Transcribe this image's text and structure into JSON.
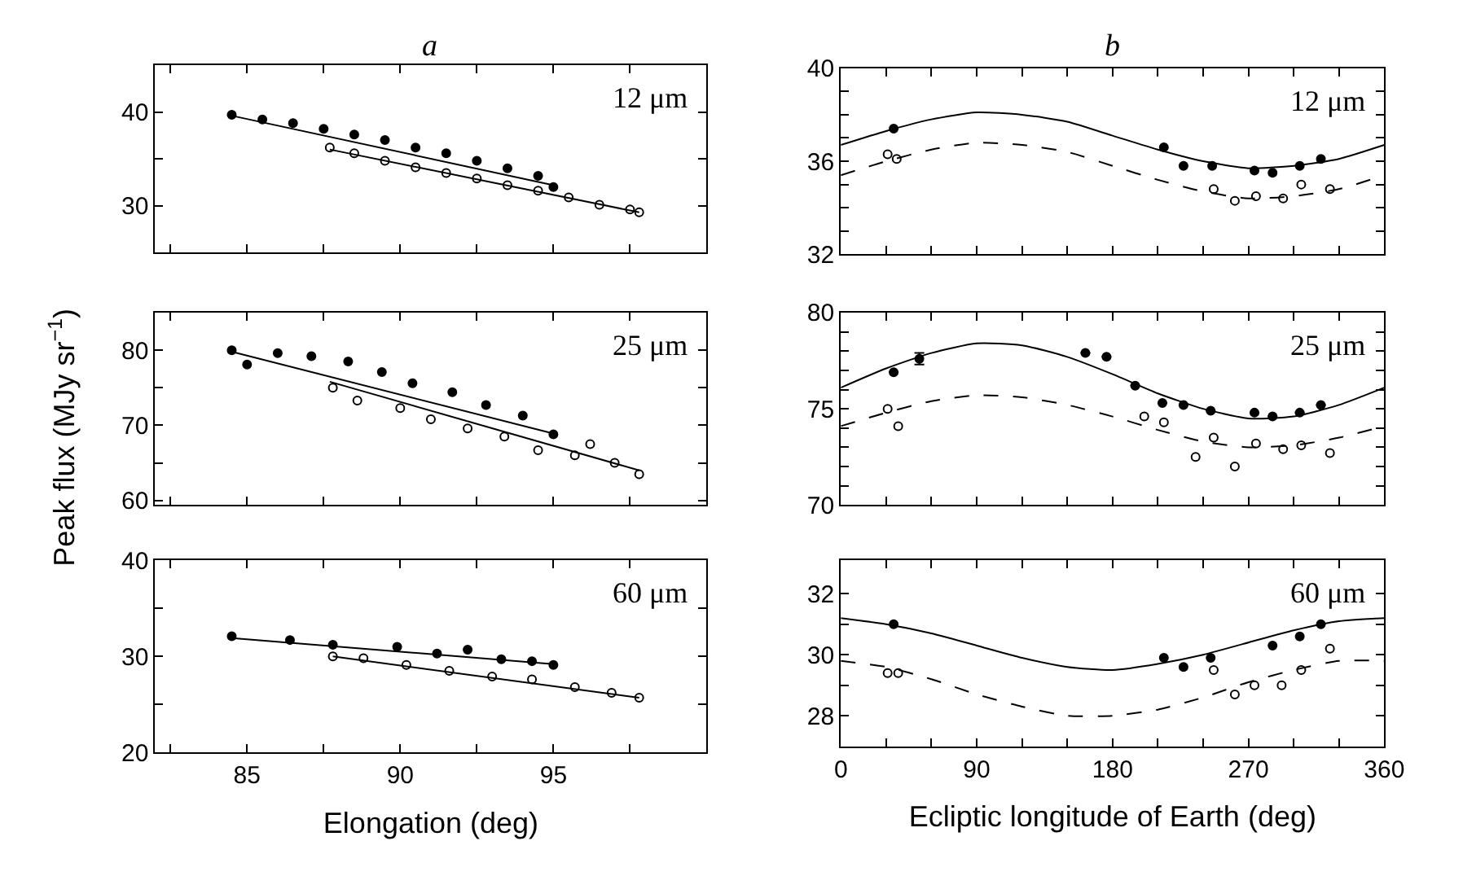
{
  "chart_data": [
    {
      "type": "scatter",
      "title": "a",
      "marker": "circle",
      "tick_labels": "y",
      "annotations": [
        "12 μm"
      ],
      "xlim": [
        82,
        100
      ],
      "xticks": [
        {
          "value": 82.5,
          "label": null
        },
        85,
        {
          "value": 87.5,
          "label": null
        },
        90,
        {
          "value": 92.5,
          "label": null
        },
        95,
        {
          "value": 97.5,
          "label": null
        }
      ],
      "ylim": [
        25,
        45
      ],
      "yticks": [
        30,
        {
          "value": 35,
          "label": null
        },
        40
      ],
      "series": [
        {
          "color": "#000000",
          "x": [
            84.5,
            85.5,
            86.5,
            87.5,
            88.5,
            89.5,
            90.5,
            91.5,
            92.5,
            93.5,
            94.5,
            95.0
          ],
          "values": [
            39.7,
            39.2,
            38.8,
            38.2,
            37.6,
            37.0,
            36.2,
            35.6,
            34.8,
            34.0,
            33.2,
            32.0
          ]
        },
        {
          "color": "#ffffff",
          "x": [
            87.7,
            88.5,
            89.5,
            90.5,
            91.5,
            92.5,
            93.5,
            94.5,
            95.5,
            96.5,
            97.5,
            97.8
          ],
          "values": [
            36.2,
            35.6,
            34.8,
            34.1,
            33.5,
            32.9,
            32.2,
            31.6,
            30.9,
            30.1,
            29.6,
            29.3
          ]
        },
        {
          "type": "line",
          "marker": "none",
          "line_style": "solid",
          "color": "#000000",
          "x": [
            84.5,
            95.0
          ],
          "values": [
            39.6,
            32.2
          ]
        },
        {
          "type": "line",
          "marker": "none",
          "line_style": "solid",
          "color": "#000000",
          "x": [
            87.7,
            97.8
          ],
          "values": [
            36.0,
            29.3
          ]
        }
      ]
    },
    {
      "type": "scatter",
      "title": "b",
      "marker": "circle",
      "tick_labels": "y",
      "annotations": [
        "12 μm"
      ],
      "xlim": [
        0,
        360
      ],
      "xticks": [
        0,
        {
          "value": 30,
          "label": null
        },
        {
          "value": 60,
          "label": null
        },
        90,
        {
          "value": 120,
          "label": null
        },
        {
          "value": 150,
          "label": null
        },
        180,
        {
          "value": 210,
          "label": null
        },
        {
          "value": 240,
          "label": null
        },
        270,
        {
          "value": 300,
          "label": null
        },
        {
          "value": 330,
          "label": null
        },
        360
      ],
      "ylim": [
        32,
        40
      ],
      "yticks": [
        32,
        {
          "value": 33,
          "label": null
        },
        {
          "value": 34,
          "label": null
        },
        {
          "value": 35,
          "label": null
        },
        36,
        {
          "value": 37,
          "label": null
        },
        {
          "value": 38,
          "label": null
        },
        {
          "value": 39,
          "label": null
        },
        40
      ],
      "series": [
        {
          "color": "#000000",
          "x": [
            35,
            214,
            227,
            246,
            274,
            286,
            304,
            318
          ],
          "values": [
            37.4,
            36.6,
            35.8,
            35.8,
            35.6,
            35.5,
            35.8,
            36.1
          ]
        },
        {
          "color": "#ffffff",
          "x": [
            31,
            37,
            247,
            261,
            275,
            293,
            305,
            324
          ],
          "values": [
            36.3,
            36.1,
            34.8,
            34.3,
            34.5,
            34.4,
            35.0,
            34.8
          ]
        },
        {
          "type": "line",
          "marker": "none",
          "line_style": "solid",
          "color": "#000000",
          "x": [
            0,
            30,
            60,
            90,
            120,
            150,
            180,
            210,
            240,
            270,
            300,
            330,
            360
          ],
          "values": [
            36.7,
            37.3,
            37.8,
            38.1,
            38.0,
            37.7,
            37.1,
            36.5,
            36.0,
            35.7,
            35.8,
            36.1,
            36.7
          ]
        },
        {
          "type": "line",
          "marker": "none",
          "line_style": "dashed",
          "color": "#000000",
          "x": [
            0,
            30,
            60,
            90,
            120,
            150,
            180,
            210,
            240,
            270,
            300,
            330,
            360
          ],
          "values": [
            35.4,
            36.0,
            36.5,
            36.8,
            36.7,
            36.4,
            35.8,
            35.2,
            34.7,
            34.4,
            34.5,
            34.8,
            35.4
          ]
        }
      ]
    },
    {
      "type": "scatter",
      "ylabel": "Peak flux (MJy sr$^{−1}$)",
      "marker": "circle",
      "tick_labels": "y",
      "annotations": [
        "25 μm"
      ],
      "xlim": [
        82,
        100
      ],
      "xticks": [
        {
          "value": 82.5,
          "label": null
        },
        85,
        {
          "value": 87.5,
          "label": null
        },
        90,
        {
          "value": 92.5,
          "label": null
        },
        95,
        {
          "value": 97.5,
          "label": null
        }
      ],
      "ylim": [
        59.4,
        85
      ],
      "yticks": [
        60,
        {
          "value": 65,
          "label": null
        },
        70,
        {
          "value": 75,
          "label": null
        },
        80
      ],
      "series": [
        {
          "color": "#000000",
          "x": [
            84.5,
            85.0,
            86.0,
            87.1,
            88.3,
            89.4,
            90.4,
            91.7,
            92.8,
            94.0,
            95.0
          ],
          "values": [
            80.0,
            78.1,
            79.6,
            79.2,
            78.5,
            77.1,
            75.6,
            74.4,
            72.7,
            71.3,
            68.8
          ]
        },
        {
          "color": "#ffffff",
          "x": [
            87.8,
            88.6,
            90.0,
            91.0,
            92.2,
            93.4,
            94.5,
            95.7,
            96.2,
            97.0,
            97.8
          ],
          "values": [
            75.0,
            73.3,
            72.3,
            70.8,
            69.6,
            68.5,
            66.7,
            66.0,
            67.5,
            65.0,
            63.5
          ]
        },
        {
          "type": "line",
          "marker": "none",
          "line_style": "solid",
          "color": "#000000",
          "x": [
            84.5,
            95.1
          ],
          "values": [
            79.8,
            68.8
          ]
        },
        {
          "type": "line",
          "marker": "none",
          "line_style": "solid",
          "color": "#000000",
          "x": [
            87.7,
            97.8
          ],
          "values": [
            75.8,
            64.0
          ]
        }
      ]
    },
    {
      "type": "scatter",
      "marker": "circle",
      "tick_labels": "y",
      "annotations": [
        "25 μm"
      ],
      "xlim": [
        0,
        360
      ],
      "xticks": [
        0,
        {
          "value": 30,
          "label": null
        },
        {
          "value": 60,
          "label": null
        },
        90,
        {
          "value": 120,
          "label": null
        },
        {
          "value": 150,
          "label": null
        },
        180,
        {
          "value": 210,
          "label": null
        },
        {
          "value": 240,
          "label": null
        },
        270,
        {
          "value": 300,
          "label": null
        },
        {
          "value": 330,
          "label": null
        },
        360
      ],
      "ylim": [
        70,
        80
      ],
      "yticks": [
        70,
        {
          "value": 71,
          "label": null
        },
        {
          "value": 72,
          "label": null
        },
        {
          "value": 73,
          "label": null
        },
        {
          "value": 74,
          "label": null
        },
        75,
        {
          "value": 76,
          "label": null
        },
        {
          "value": 77,
          "label": null
        },
        {
          "value": 78,
          "label": null
        },
        {
          "value": 79,
          "label": null
        },
        80
      ],
      "series": [
        {
          "color": "#000000",
          "x": [
            35,
            52,
            162,
            176,
            195,
            213,
            227,
            245,
            274,
            286,
            304,
            318
          ],
          "values": [
            76.9,
            77.6,
            77.9,
            77.7,
            76.2,
            75.3,
            75.2,
            74.9,
            74.8,
            74.6,
            74.8,
            75.2
          ],
          "errors": [
            null,
            0.3,
            null,
            null,
            null,
            null,
            null,
            null,
            null,
            null,
            null,
            null
          ]
        },
        {
          "color": "#ffffff",
          "x": [
            31,
            38,
            201,
            214,
            235,
            247,
            261,
            275,
            293,
            305,
            324
          ],
          "values": [
            75.0,
            74.1,
            74.6,
            74.3,
            72.5,
            73.5,
            72.0,
            73.2,
            72.9,
            73.1,
            72.7
          ]
        },
        {
          "type": "line",
          "marker": "none",
          "line_style": "solid",
          "color": "#000000",
          "x": [
            0,
            30,
            60,
            90,
            120,
            150,
            180,
            210,
            240,
            270,
            300,
            330,
            360
          ],
          "values": [
            76.1,
            77.1,
            77.9,
            78.4,
            78.3,
            77.7,
            76.8,
            75.8,
            75.0,
            74.5,
            74.6,
            75.2,
            76.1
          ]
        },
        {
          "type": "line",
          "marker": "none",
          "line_style": "dashed",
          "color": "#000000",
          "x": [
            0,
            30,
            60,
            90,
            120,
            150,
            180,
            210,
            240,
            270,
            300,
            330,
            360
          ],
          "values": [
            74.1,
            74.8,
            75.4,
            75.7,
            75.6,
            75.2,
            74.6,
            73.9,
            73.3,
            73.0,
            73.1,
            73.5,
            74.1
          ]
        }
      ]
    },
    {
      "type": "scatter",
      "xlabel": "Elongation (deg)",
      "marker": "circle",
      "annotations": [
        "60 μm"
      ],
      "xlim": [
        82,
        100
      ],
      "xticks": [
        {
          "value": 82.5,
          "label": null
        },
        85,
        {
          "value": 87.5,
          "label": null
        },
        90,
        {
          "value": 92.5,
          "label": null
        },
        95,
        {
          "value": 97.5,
          "label": null
        }
      ],
      "ylim": [
        20,
        40
      ],
      "yticks": [
        20,
        {
          "value": 25,
          "label": null
        },
        30,
        {
          "value": 35,
          "label": null
        },
        40
      ],
      "series": [
        {
          "color": "#000000",
          "x": [
            84.5,
            86.4,
            87.8,
            89.9,
            91.2,
            92.2,
            93.3,
            94.3,
            95.0
          ],
          "values": [
            32.1,
            31.7,
            31.2,
            31.0,
            30.3,
            30.7,
            29.7,
            29.5,
            29.1
          ]
        },
        {
          "color": "#ffffff",
          "x": [
            87.8,
            88.8,
            90.2,
            91.6,
            93.0,
            94.3,
            95.7,
            96.9,
            97.8
          ],
          "values": [
            30.0,
            29.8,
            29.1,
            28.5,
            27.9,
            27.6,
            26.8,
            26.2,
            25.7
          ]
        },
        {
          "type": "line",
          "marker": "none",
          "line_style": "solid",
          "color": "#000000",
          "x": [
            84.5,
            95.0
          ],
          "values": [
            31.9,
            29.2
          ]
        },
        {
          "type": "line",
          "marker": "none",
          "line_style": "solid",
          "color": "#000000",
          "x": [
            87.8,
            97.8
          ],
          "values": [
            30.0,
            25.7
          ]
        }
      ]
    },
    {
      "type": "scatter",
      "xlabel": "Ecliptic longitude of Earth (deg)",
      "marker": "circle",
      "annotations": [
        "60 μm"
      ],
      "xlim": [
        0,
        360
      ],
      "xticks": [
        0,
        {
          "value": 30,
          "label": null
        },
        {
          "value": 60,
          "label": null
        },
        90,
        {
          "value": 120,
          "label": null
        },
        {
          "value": 150,
          "label": null
        },
        180,
        {
          "value": 210,
          "label": null
        },
        {
          "value": 240,
          "label": null
        },
        270,
        {
          "value": 300,
          "label": null
        },
        {
          "value": 330,
          "label": null
        },
        360
      ],
      "ylim": [
        27,
        33.1
      ],
      "yticks": [
        28,
        {
          "value": 29,
          "label": null
        },
        30,
        {
          "value": 31,
          "label": null
        },
        32
      ],
      "series": [
        {
          "color": "#000000",
          "x": [
            35,
            214,
            227,
            245,
            286,
            304,
            318
          ],
          "values": [
            31.0,
            29.9,
            29.6,
            29.9,
            30.3,
            30.6,
            31.0
          ]
        },
        {
          "color": "#ffffff",
          "x": [
            31,
            38,
            247,
            261,
            274,
            292,
            305,
            324
          ],
          "values": [
            29.4,
            29.4,
            29.5,
            28.7,
            29.0,
            29.0,
            29.5,
            30.2
          ]
        },
        {
          "type": "line",
          "marker": "none",
          "line_style": "solid",
          "color": "#000000",
          "x": [
            0,
            30,
            60,
            90,
            120,
            150,
            180,
            210,
            240,
            270,
            300,
            330,
            360
          ],
          "values": [
            31.2,
            31.0,
            30.7,
            30.3,
            29.9,
            29.6,
            29.5,
            29.7,
            30.0,
            30.4,
            30.8,
            31.1,
            31.2
          ]
        },
        {
          "type": "line",
          "marker": "none",
          "line_style": "dashed",
          "color": "#000000",
          "x": [
            0,
            30,
            60,
            90,
            120,
            150,
            180,
            210,
            240,
            270,
            300,
            330,
            360
          ],
          "values": [
            29.8,
            29.6,
            29.2,
            28.7,
            28.3,
            28.0,
            28.0,
            28.2,
            28.6,
            29.1,
            29.5,
            29.8,
            29.8
          ]
        }
      ]
    }
  ]
}
